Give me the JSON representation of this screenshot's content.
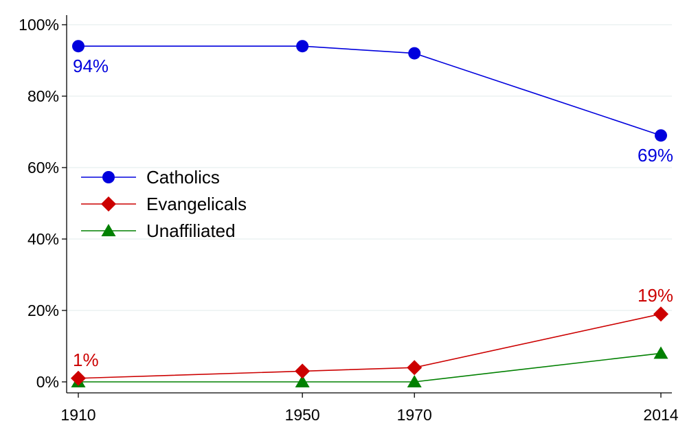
{
  "chart_data": {
    "type": "line",
    "title": "",
    "xlabel": "",
    "ylabel": "",
    "x": [
      1910,
      1950,
      1970,
      2014
    ],
    "x_tick_labels": [
      "1910",
      "1950",
      "1970",
      "2014"
    ],
    "ylim": [
      0,
      100
    ],
    "y_ticks": [
      0,
      20,
      40,
      60,
      80,
      100
    ],
    "y_tick_labels": [
      "0%",
      "20%",
      "40%",
      "60%",
      "80%",
      "100%"
    ],
    "grid": "horizontal",
    "legend_position": "center-left",
    "series": [
      {
        "name": "Catholics",
        "color": "#0000dd",
        "marker": "circle",
        "values": [
          94,
          94,
          92,
          69
        ],
        "labels": [
          {
            "index": 0,
            "text": "94%",
            "placement": "below"
          },
          {
            "index": 3,
            "text": "69%",
            "placement": "below"
          }
        ]
      },
      {
        "name": "Evangelicals",
        "color": "#cc0000",
        "marker": "diamond",
        "values": [
          1,
          3,
          4,
          19
        ],
        "labels": [
          {
            "index": 0,
            "text": "1%",
            "placement": "above"
          },
          {
            "index": 3,
            "text": "19%",
            "placement": "above"
          }
        ]
      },
      {
        "name": "Unaffiliated",
        "color": "#008000",
        "marker": "triangle",
        "values": [
          0,
          0,
          0,
          8
        ],
        "labels": []
      }
    ]
  }
}
